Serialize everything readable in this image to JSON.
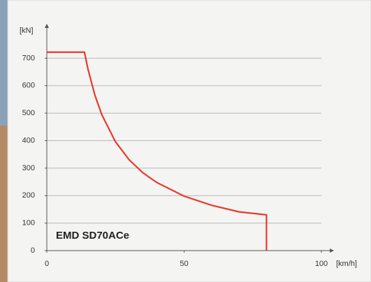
{
  "chart_data": {
    "type": "line",
    "y_unit": "[kN]",
    "x_unit": "[km/h]",
    "x": [
      0,
      13.7,
      15,
      17.5,
      20,
      25,
      30,
      35,
      40,
      50,
      60,
      70,
      80,
      80
    ],
    "series": [
      {
        "name": "EMD SD70ACe",
        "color": "#e8392f",
        "values": [
          722,
          722,
          660,
          566,
          495,
          396,
          330,
          283,
          248,
          198,
          165,
          141,
          130,
          0
        ]
      }
    ],
    "xlim": [
      0,
      100
    ],
    "xticks": [
      0,
      50,
      100
    ],
    "ylim": [
      0,
      800
    ],
    "yticks": [
      0,
      100,
      200,
      300,
      400,
      500,
      600,
      700
    ],
    "grid": true
  }
}
